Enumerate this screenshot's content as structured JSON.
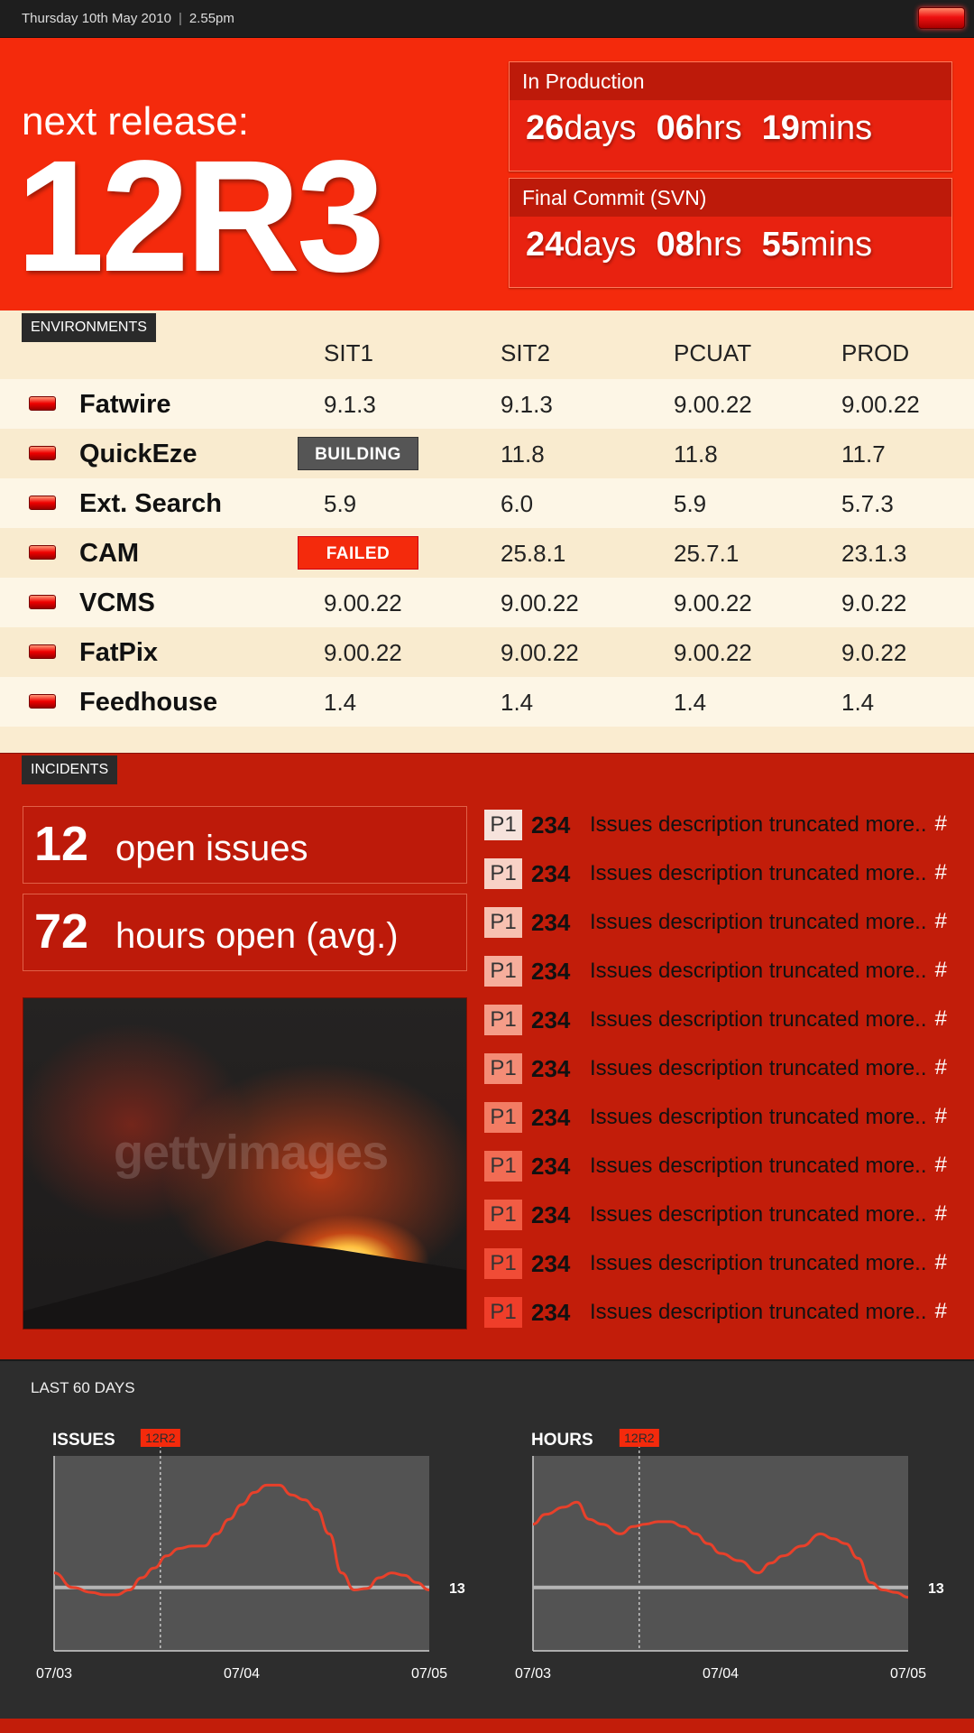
{
  "topbar": {
    "date": "Thursday 10th May 2010",
    "time": "2.55pm",
    "status_light": "red"
  },
  "hero": {
    "label": "next release:",
    "release": "12R3",
    "countdowns": [
      {
        "title": "In Production",
        "days": "26",
        "hrs": "06",
        "mins": "19"
      },
      {
        "title": "Final Commit (SVN)",
        "days": "24",
        "hrs": "08",
        "mins": "55"
      }
    ],
    "units": {
      "days": "days",
      "hrs": "hrs",
      "mins": "mins"
    }
  },
  "environments": {
    "tag": "ENVIRONMENTS",
    "columns": [
      "SIT1",
      "SIT2",
      "PCUAT",
      "PROD"
    ],
    "rows": [
      {
        "name": "Fatwire",
        "values": [
          "9.1.3",
          "9.1.3",
          "9.00.22",
          "9.00.22"
        ]
      },
      {
        "name": "QuickEze",
        "values": [
          "BUILDING",
          "11.8",
          "11.8",
          "11.7"
        ],
        "badge": "building"
      },
      {
        "name": "Ext. Search",
        "values": [
          "5.9",
          "6.0",
          "5.9",
          "5.7.3"
        ]
      },
      {
        "name": "CAM",
        "values": [
          "FAILED",
          "25.8.1",
          "25.7.1",
          "23.1.3"
        ],
        "badge": "failed"
      },
      {
        "name": "VCMS",
        "values": [
          "9.00.22",
          "9.00.22",
          "9.00.22",
          "9.0.22"
        ]
      },
      {
        "name": "FatPix",
        "values": [
          "9.00.22",
          "9.00.22",
          "9.00.22",
          "9.0.22"
        ]
      },
      {
        "name": "Feedhouse",
        "values": [
          "1.4",
          "1.4",
          "1.4",
          "1.4"
        ]
      }
    ]
  },
  "incidents": {
    "tag": "INCIDENTS",
    "open_issues": {
      "num": "12",
      "label": "open issues"
    },
    "hours_open": {
      "num": "72",
      "label": "hours open (avg.)"
    },
    "photo_watermark": "gettyimages",
    "issues": [
      {
        "priority": "P1",
        "id": "234",
        "desc": "Issues description truncated more..",
        "link": "#",
        "shade": "#f6e3dc"
      },
      {
        "priority": "P1",
        "id": "234",
        "desc": "Issues description truncated more..",
        "link": "#",
        "shade": "#f8d2c6"
      },
      {
        "priority": "P1",
        "id": "234",
        "desc": "Issues description truncated more..",
        "link": "#",
        "shade": "#f7c0b0"
      },
      {
        "priority": "P1",
        "id": "234",
        "desc": "Issues description truncated more..",
        "link": "#",
        "shade": "#f6ae9c"
      },
      {
        "priority": "P1",
        "id": "234",
        "desc": "Issues description truncated more..",
        "link": "#",
        "shade": "#f59c88"
      },
      {
        "priority": "P1",
        "id": "234",
        "desc": "Issues description truncated more..",
        "link": "#",
        "shade": "#f48c76"
      },
      {
        "priority": "P1",
        "id": "234",
        "desc": "Issues description truncated more..",
        "link": "#",
        "shade": "#f37c64"
      },
      {
        "priority": "P1",
        "id": "234",
        "desc": "Issues description truncated more..",
        "link": "#",
        "shade": "#f26c54"
      },
      {
        "priority": "P1",
        "id": "234",
        "desc": "Issues description truncated more..",
        "link": "#",
        "shade": "#f15c44"
      },
      {
        "priority": "P1",
        "id": "234",
        "desc": "Issues description truncated more..",
        "link": "#",
        "shade": "#f04c36"
      },
      {
        "priority": "P1",
        "id": "234",
        "desc": "Issues description truncated more..",
        "link": "#",
        "shade": "#ef3e2a"
      }
    ]
  },
  "charts_section": {
    "title": "LAST 60 DAYS"
  },
  "chart_data": [
    {
      "type": "line",
      "title": "ISSUES",
      "marker_label": "12R2",
      "marker_x": 17,
      "reference_value": 13,
      "reference_label": "13",
      "x_tick_labels": [
        "07/03",
        "07/04",
        "07/05"
      ],
      "x_tick_positions": [
        0,
        30,
        60
      ],
      "xlim": [
        0,
        60
      ],
      "ylim": [
        0,
        40
      ],
      "x": [
        0,
        3,
        6,
        8,
        10,
        12,
        14,
        16,
        18,
        20,
        22,
        24,
        26,
        28,
        30,
        32,
        34,
        36,
        38,
        40,
        42,
        44,
        46,
        48,
        50,
        52,
        54,
        56,
        58,
        60
      ],
      "values": [
        16,
        13,
        12,
        11.5,
        11.5,
        12.5,
        15,
        17,
        19.5,
        21,
        21.5,
        21.5,
        24,
        27,
        30,
        32.5,
        34,
        34,
        32,
        31,
        29,
        24,
        16,
        12.5,
        12.8,
        15,
        16,
        15.5,
        14,
        12.5
      ],
      "color": "#e8402a",
      "grid": false
    },
    {
      "type": "line",
      "title": "HOURS",
      "marker_label": "12R2",
      "marker_x": 17,
      "reference_value": 13,
      "reference_label": "13",
      "x_tick_labels": [
        "07/03",
        "07/04",
        "07/05"
      ],
      "x_tick_positions": [
        0,
        30,
        60
      ],
      "xlim": [
        0,
        60
      ],
      "ylim": [
        0,
        40
      ],
      "x": [
        0,
        2,
        5,
        7,
        9,
        11,
        14,
        16,
        18,
        20,
        22,
        24,
        26,
        28,
        30,
        33,
        36,
        38,
        40,
        43,
        46,
        48,
        50,
        52,
        54,
        56,
        58,
        60
      ],
      "values": [
        26,
        28,
        29.5,
        30.5,
        27,
        26,
        24,
        25.5,
        26,
        26.5,
        26.5,
        25.5,
        24,
        22,
        20,
        18.5,
        16,
        18,
        19.5,
        21.5,
        24,
        23,
        22,
        19,
        14,
        12.5,
        12,
        11
      ],
      "color": "#e8402a",
      "grid": false
    }
  ]
}
